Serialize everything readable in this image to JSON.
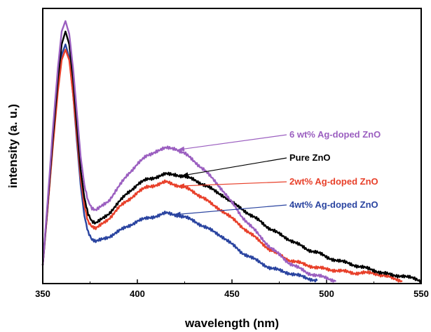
{
  "chart_data": {
    "type": "line",
    "title": "",
    "xlabel": "wavelength (nm)",
    "ylabel": "intensity (a. u.)",
    "xlim": [
      350,
      550
    ],
    "ylim": [
      0,
      1.0
    ],
    "y_ticks_shown": false,
    "x_ticks": [
      350,
      400,
      450,
      500,
      550
    ],
    "x_tick_labels": [
      "350",
      "400",
      "450",
      "500",
      "550"
    ],
    "legend": "annotations with arrows",
    "series": [
      {
        "name": "6 wt% Ag-doped ZnO",
        "color": "#9b5fc0",
        "points": [
          [
            350,
            0.06
          ],
          [
            352,
            0.25
          ],
          [
            355,
            0.55
          ],
          [
            358,
            0.82
          ],
          [
            360,
            0.96
          ],
          [
            362,
            1.0
          ],
          [
            364,
            0.95
          ],
          [
            366,
            0.82
          ],
          [
            368,
            0.65
          ],
          [
            370,
            0.48
          ],
          [
            372,
            0.37
          ],
          [
            374,
            0.31
          ],
          [
            376,
            0.28
          ],
          [
            378,
            0.27
          ],
          [
            380,
            0.28
          ],
          [
            385,
            0.31
          ],
          [
            390,
            0.36
          ],
          [
            395,
            0.41
          ],
          [
            400,
            0.45
          ],
          [
            405,
            0.48
          ],
          [
            410,
            0.5
          ],
          [
            415,
            0.51
          ],
          [
            420,
            0.51
          ],
          [
            425,
            0.49
          ],
          [
            430,
            0.46
          ],
          [
            435,
            0.43
          ],
          [
            440,
            0.39
          ],
          [
            445,
            0.35
          ],
          [
            450,
            0.3
          ],
          [
            455,
            0.25
          ],
          [
            460,
            0.21
          ],
          [
            465,
            0.17
          ],
          [
            470,
            0.13
          ],
          [
            475,
            0.1
          ],
          [
            480,
            0.07
          ],
          [
            485,
            0.05
          ],
          [
            490,
            0.03
          ],
          [
            495,
            0.02
          ],
          [
            500,
            0.01
          ],
          [
            505,
            0.0
          ]
        ]
      },
      {
        "name": "Pure ZnO",
        "color": "#000000",
        "points": [
          [
            350,
            0.06
          ],
          [
            352,
            0.24
          ],
          [
            355,
            0.52
          ],
          [
            358,
            0.78
          ],
          [
            360,
            0.91
          ],
          [
            362,
            0.96
          ],
          [
            364,
            0.91
          ],
          [
            366,
            0.78
          ],
          [
            368,
            0.6
          ],
          [
            370,
            0.43
          ],
          [
            372,
            0.32
          ],
          [
            374,
            0.26
          ],
          [
            376,
            0.23
          ],
          [
            378,
            0.22
          ],
          [
            380,
            0.23
          ],
          [
            385,
            0.26
          ],
          [
            390,
            0.3
          ],
          [
            395,
            0.34
          ],
          [
            400,
            0.37
          ],
          [
            405,
            0.39
          ],
          [
            410,
            0.4
          ],
          [
            415,
            0.41
          ],
          [
            420,
            0.41
          ],
          [
            425,
            0.4
          ],
          [
            430,
            0.39
          ],
          [
            435,
            0.37
          ],
          [
            440,
            0.35
          ],
          [
            445,
            0.33
          ],
          [
            450,
            0.3
          ],
          [
            455,
            0.28
          ],
          [
            460,
            0.25
          ],
          [
            465,
            0.23
          ],
          [
            470,
            0.2
          ],
          [
            475,
            0.18
          ],
          [
            480,
            0.16
          ],
          [
            485,
            0.14
          ],
          [
            490,
            0.12
          ],
          [
            495,
            0.11
          ],
          [
            500,
            0.09
          ],
          [
            505,
            0.08
          ],
          [
            510,
            0.07
          ],
          [
            515,
            0.06
          ],
          [
            520,
            0.05
          ],
          [
            525,
            0.04
          ],
          [
            530,
            0.03
          ],
          [
            535,
            0.02
          ],
          [
            540,
            0.02
          ],
          [
            545,
            0.01
          ],
          [
            550,
            0.0
          ]
        ]
      },
      {
        "name": "2wt% Ag-doped ZnO",
        "color": "#e8402a",
        "points": [
          [
            350,
            0.06
          ],
          [
            352,
            0.23
          ],
          [
            355,
            0.49
          ],
          [
            358,
            0.73
          ],
          [
            360,
            0.85
          ],
          [
            362,
            0.89
          ],
          [
            364,
            0.85
          ],
          [
            366,
            0.72
          ],
          [
            368,
            0.56
          ],
          [
            370,
            0.4
          ],
          [
            372,
            0.29
          ],
          [
            374,
            0.23
          ],
          [
            376,
            0.21
          ],
          [
            378,
            0.2
          ],
          [
            380,
            0.21
          ],
          [
            385,
            0.24
          ],
          [
            390,
            0.28
          ],
          [
            395,
            0.31
          ],
          [
            400,
            0.34
          ],
          [
            405,
            0.36
          ],
          [
            410,
            0.37
          ],
          [
            415,
            0.38
          ],
          [
            420,
            0.37
          ],
          [
            425,
            0.36
          ],
          [
            430,
            0.34
          ],
          [
            435,
            0.32
          ],
          [
            440,
            0.29
          ],
          [
            445,
            0.27
          ],
          [
            450,
            0.24
          ],
          [
            455,
            0.21
          ],
          [
            460,
            0.18
          ],
          [
            465,
            0.15
          ],
          [
            470,
            0.12
          ],
          [
            475,
            0.1
          ],
          [
            480,
            0.08
          ],
          [
            485,
            0.07
          ],
          [
            490,
            0.06
          ],
          [
            495,
            0.05
          ],
          [
            500,
            0.045
          ],
          [
            505,
            0.04
          ],
          [
            510,
            0.035
          ],
          [
            515,
            0.03
          ],
          [
            520,
            0.03
          ],
          [
            525,
            0.03
          ],
          [
            530,
            0.02
          ],
          [
            535,
            0.01
          ],
          [
            540,
            0.0
          ]
        ]
      },
      {
        "name": "4wt% Ag-doped ZnO",
        "color": "#2a44a0",
        "points": [
          [
            350,
            0.06
          ],
          [
            352,
            0.23
          ],
          [
            355,
            0.5
          ],
          [
            358,
            0.74
          ],
          [
            360,
            0.87
          ],
          [
            362,
            0.91
          ],
          [
            364,
            0.86
          ],
          [
            366,
            0.72
          ],
          [
            368,
            0.54
          ],
          [
            370,
            0.37
          ],
          [
            372,
            0.25
          ],
          [
            374,
            0.19
          ],
          [
            376,
            0.16
          ],
          [
            378,
            0.15
          ],
          [
            380,
            0.155
          ],
          [
            385,
            0.17
          ],
          [
            390,
            0.19
          ],
          [
            395,
            0.21
          ],
          [
            400,
            0.23
          ],
          [
            405,
            0.24
          ],
          [
            410,
            0.25
          ],
          [
            415,
            0.26
          ],
          [
            420,
            0.255
          ],
          [
            425,
            0.245
          ],
          [
            430,
            0.23
          ],
          [
            435,
            0.21
          ],
          [
            440,
            0.19
          ],
          [
            445,
            0.17
          ],
          [
            450,
            0.14
          ],
          [
            455,
            0.11
          ],
          [
            460,
            0.09
          ],
          [
            465,
            0.07
          ],
          [
            470,
            0.05
          ],
          [
            475,
            0.04
          ],
          [
            480,
            0.03
          ],
          [
            485,
            0.02
          ],
          [
            490,
            0.01
          ],
          [
            495,
            0.0
          ]
        ]
      }
    ],
    "annotations": [
      {
        "text": "6 wt% Ag-doped ZnO",
        "color": "#9b5fc0",
        "target": [
          420,
          0.51
        ]
      },
      {
        "text": "Pure ZnO",
        "color": "#000000",
        "target": [
          422,
          0.41
        ]
      },
      {
        "text": "2wt% Ag-doped ZnO",
        "color": "#e8402a",
        "target": [
          420,
          0.37
        ]
      },
      {
        "text": "4wt% Ag-doped ZnO",
        "color": "#2a44a0",
        "target": [
          418,
          0.26
        ]
      }
    ]
  }
}
